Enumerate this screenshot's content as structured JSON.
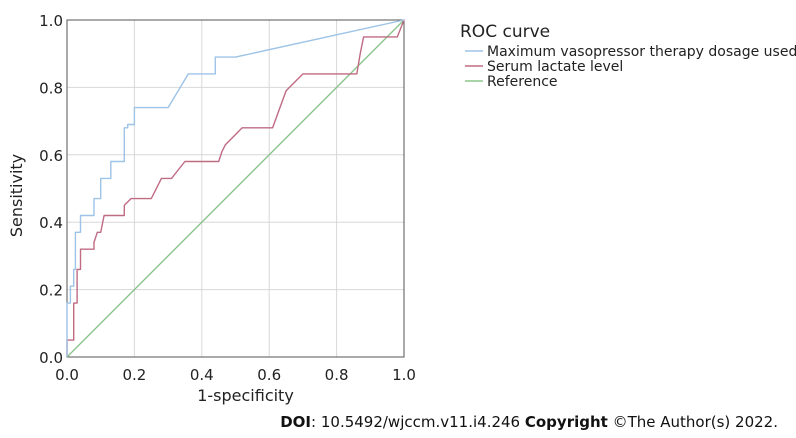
{
  "chart_data": {
    "type": "line",
    "title": "",
    "xlabel": "1-specificity",
    "ylabel": "Sensitivity",
    "xlim": [
      0,
      1
    ],
    "ylim": [
      0,
      1
    ],
    "xticks": [
      "0.0",
      "0.2",
      "0.4",
      "0.6",
      "0.8",
      "1.0"
    ],
    "yticks": [
      "0.0",
      "0.2",
      "0.4",
      "0.6",
      "0.8",
      "1.0"
    ],
    "grid": true,
    "legend": {
      "title": "ROC curve",
      "position": "top-right-outside"
    },
    "series": [
      {
        "name": "Maximum vasopressor therapy dosage used",
        "color": "#9dc3e6",
        "points": [
          [
            0,
            0
          ],
          [
            0,
            0.16
          ],
          [
            0.01,
            0.16
          ],
          [
            0.01,
            0.21
          ],
          [
            0.02,
            0.21
          ],
          [
            0.02,
            0.26
          ],
          [
            0.025,
            0.26
          ],
          [
            0.025,
            0.37
          ],
          [
            0.04,
            0.37
          ],
          [
            0.04,
            0.42
          ],
          [
            0.08,
            0.42
          ],
          [
            0.08,
            0.47
          ],
          [
            0.1,
            0.47
          ],
          [
            0.1,
            0.53
          ],
          [
            0.13,
            0.53
          ],
          [
            0.13,
            0.58
          ],
          [
            0.17,
            0.58
          ],
          [
            0.17,
            0.68
          ],
          [
            0.18,
            0.68
          ],
          [
            0.18,
            0.69
          ],
          [
            0.2,
            0.69
          ],
          [
            0.2,
            0.74
          ],
          [
            0.3,
            0.74
          ],
          [
            0.36,
            0.84
          ],
          [
            0.44,
            0.84
          ],
          [
            0.44,
            0.89
          ],
          [
            0.5,
            0.89
          ],
          [
            1,
            1
          ]
        ]
      },
      {
        "name": "Serum lactate level",
        "color": "#c06b84",
        "points": [
          [
            0,
            0
          ],
          [
            0,
            0.05
          ],
          [
            0.02,
            0.05
          ],
          [
            0.02,
            0.16
          ],
          [
            0.03,
            0.16
          ],
          [
            0.03,
            0.26
          ],
          [
            0.04,
            0.26
          ],
          [
            0.04,
            0.32
          ],
          [
            0.08,
            0.32
          ],
          [
            0.08,
            0.34
          ],
          [
            0.09,
            0.37
          ],
          [
            0.1,
            0.37
          ],
          [
            0.11,
            0.42
          ],
          [
            0.17,
            0.42
          ],
          [
            0.17,
            0.45
          ],
          [
            0.19,
            0.47
          ],
          [
            0.25,
            0.47
          ],
          [
            0.28,
            0.53
          ],
          [
            0.31,
            0.53
          ],
          [
            0.35,
            0.58
          ],
          [
            0.45,
            0.58
          ],
          [
            0.46,
            0.61
          ],
          [
            0.47,
            0.63
          ],
          [
            0.52,
            0.68
          ],
          [
            0.61,
            0.68
          ],
          [
            0.65,
            0.79
          ],
          [
            0.7,
            0.84
          ],
          [
            0.86,
            0.84
          ],
          [
            0.87,
            0.9
          ],
          [
            0.88,
            0.95
          ],
          [
            0.98,
            0.95
          ],
          [
            1,
            1
          ]
        ]
      },
      {
        "name": "Reference",
        "color": "#8cc58c",
        "points": [
          [
            0,
            0
          ],
          [
            1,
            1
          ]
        ]
      }
    ]
  },
  "footer": {
    "doi_label": "DOI",
    "doi_value": ": 10.5492/wjccm.v11.i4.246 ",
    "copyright_label": "Copyright",
    "copyright_text": " ©The Author(s) 2022."
  }
}
